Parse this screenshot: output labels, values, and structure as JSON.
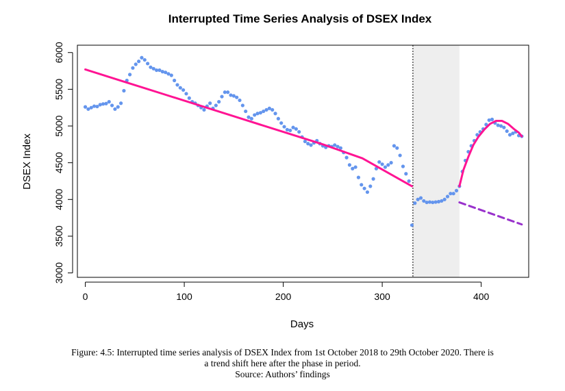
{
  "chart_data": {
    "type": "scatter",
    "title": "Interrupted Time Series Analysis of DSEX Index",
    "xlabel": "Days",
    "ylabel": "DSEX Index",
    "xlim": [
      -8,
      448
    ],
    "ylim": [
      2940,
      6100
    ],
    "x_ticks": [
      0,
      100,
      200,
      300,
      400
    ],
    "y_ticks": [
      3000,
      3500,
      4000,
      4500,
      5000,
      5500,
      6000
    ],
    "grid": false,
    "legend": "none",
    "colors": {
      "points": "#6495ed",
      "trend": "#ff1493",
      "counterfactual": "#9932cc",
      "phase_shade": "#eeeeee"
    },
    "intervention": {
      "start_day": 331,
      "end_day": 378
    },
    "series": [
      {
        "kind": "observed",
        "points": [
          [
            0,
            5260
          ],
          [
            3,
            5230
          ],
          [
            6,
            5250
          ],
          [
            9,
            5270
          ],
          [
            12,
            5265
          ],
          [
            15,
            5290
          ],
          [
            18,
            5300
          ],
          [
            21,
            5305
          ],
          [
            24,
            5330
          ],
          [
            27,
            5280
          ],
          [
            30,
            5230
          ],
          [
            33,
            5260
          ],
          [
            36,
            5310
          ],
          [
            39,
            5480
          ],
          [
            42,
            5620
          ],
          [
            45,
            5700
          ],
          [
            48,
            5790
          ],
          [
            51,
            5840
          ],
          [
            54,
            5880
          ],
          [
            57,
            5930
          ],
          [
            60,
            5900
          ],
          [
            63,
            5850
          ],
          [
            66,
            5800
          ],
          [
            69,
            5780
          ],
          [
            72,
            5760
          ],
          [
            75,
            5760
          ],
          [
            78,
            5740
          ],
          [
            81,
            5730
          ],
          [
            84,
            5710
          ],
          [
            87,
            5690
          ],
          [
            90,
            5620
          ],
          [
            93,
            5560
          ],
          [
            96,
            5520
          ],
          [
            99,
            5490
          ],
          [
            102,
            5440
          ],
          [
            105,
            5380
          ],
          [
            108,
            5330
          ],
          [
            111,
            5310
          ],
          [
            114,
            5280
          ],
          [
            117,
            5250
          ],
          [
            120,
            5220
          ],
          [
            123,
            5270
          ],
          [
            126,
            5310
          ],
          [
            129,
            5240
          ],
          [
            132,
            5280
          ],
          [
            135,
            5330
          ],
          [
            138,
            5400
          ],
          [
            141,
            5460
          ],
          [
            144,
            5460
          ],
          [
            147,
            5420
          ],
          [
            150,
            5410
          ],
          [
            153,
            5390
          ],
          [
            156,
            5350
          ],
          [
            159,
            5280
          ],
          [
            162,
            5200
          ],
          [
            165,
            5120
          ],
          [
            168,
            5100
          ],
          [
            171,
            5150
          ],
          [
            174,
            5170
          ],
          [
            177,
            5180
          ],
          [
            180,
            5200
          ],
          [
            183,
            5220
          ],
          [
            186,
            5240
          ],
          [
            189,
            5220
          ],
          [
            192,
            5170
          ],
          [
            195,
            5100
          ],
          [
            198,
            5040
          ],
          [
            201,
            4990
          ],
          [
            204,
            4950
          ],
          [
            207,
            4940
          ],
          [
            210,
            4980
          ],
          [
            213,
            4960
          ],
          [
            216,
            4920
          ],
          [
            219,
            4850
          ],
          [
            222,
            4790
          ],
          [
            225,
            4760
          ],
          [
            228,
            4740
          ],
          [
            231,
            4770
          ],
          [
            234,
            4800
          ],
          [
            237,
            4760
          ],
          [
            240,
            4730
          ],
          [
            243,
            4710
          ],
          [
            246,
            4730
          ],
          [
            249,
            4720
          ],
          [
            252,
            4740
          ],
          [
            255,
            4720
          ],
          [
            258,
            4700
          ],
          [
            261,
            4640
          ],
          [
            264,
            4570
          ],
          [
            267,
            4470
          ],
          [
            270,
            4420
          ],
          [
            273,
            4440
          ],
          [
            276,
            4300
          ],
          [
            279,
            4200
          ],
          [
            282,
            4150
          ],
          [
            285,
            4100
          ],
          [
            288,
            4180
          ],
          [
            291,
            4280
          ],
          [
            294,
            4420
          ],
          [
            297,
            4510
          ],
          [
            300,
            4480
          ],
          [
            303,
            4440
          ],
          [
            306,
            4470
          ],
          [
            309,
            4500
          ],
          [
            312,
            4730
          ],
          [
            315,
            4700
          ],
          [
            318,
            4600
          ],
          [
            321,
            4450
          ],
          [
            324,
            4350
          ],
          [
            327,
            4250
          ],
          [
            330,
            3650
          ],
          [
            333,
            3950
          ],
          [
            336,
            4000
          ],
          [
            339,
            4020
          ],
          [
            342,
            3980
          ],
          [
            345,
            3960
          ],
          [
            348,
            3965
          ],
          [
            351,
            3960
          ],
          [
            354,
            3965
          ],
          [
            357,
            3970
          ],
          [
            360,
            3980
          ],
          [
            363,
            4000
          ],
          [
            366,
            4040
          ],
          [
            369,
            4080
          ],
          [
            372,
            4080
          ],
          [
            375,
            4120
          ],
          [
            378,
            4180
          ],
          [
            381,
            4380
          ],
          [
            384,
            4530
          ],
          [
            387,
            4650
          ],
          [
            390,
            4730
          ],
          [
            393,
            4800
          ],
          [
            396,
            4880
          ],
          [
            399,
            4920
          ],
          [
            402,
            4960
          ],
          [
            405,
            5020
          ],
          [
            408,
            5080
          ],
          [
            411,
            5090
          ],
          [
            414,
            5040
          ],
          [
            417,
            5010
          ],
          [
            420,
            5000
          ],
          [
            423,
            4980
          ],
          [
            426,
            4930
          ],
          [
            429,
            4880
          ],
          [
            432,
            4900
          ],
          [
            435,
            4920
          ],
          [
            438,
            4870
          ],
          [
            441,
            4860
          ]
        ]
      },
      {
        "kind": "pre-intervention fitted trend",
        "points": [
          [
            0,
            5770
          ],
          [
            40,
            5600
          ],
          [
            80,
            5430
          ],
          [
            120,
            5260
          ],
          [
            160,
            5090
          ],
          [
            200,
            4920
          ],
          [
            240,
            4750
          ],
          [
            280,
            4560
          ],
          [
            330,
            4180
          ]
        ]
      },
      {
        "kind": "post-intervention fitted trend",
        "points": [
          [
            378,
            4180
          ],
          [
            382,
            4400
          ],
          [
            387,
            4580
          ],
          [
            392,
            4740
          ],
          [
            397,
            4850
          ],
          [
            403,
            4950
          ],
          [
            409,
            5030
          ],
          [
            415,
            5070
          ],
          [
            421,
            5070
          ],
          [
            427,
            5030
          ],
          [
            433,
            4960
          ],
          [
            438,
            4910
          ],
          [
            441,
            4860
          ]
        ]
      },
      {
        "kind": "counterfactual trend",
        "points": [
          [
            378,
            3960
          ],
          [
            441,
            3660
          ]
        ]
      }
    ]
  },
  "caption": {
    "line1": "Figure: 4.5: Interrupted time series analysis of DSEX Index from 1st October 2018 to 29th October 2020. There is",
    "line2": "a trend shift here after the phase in period.",
    "line3": "Source: Authors’ findings"
  }
}
